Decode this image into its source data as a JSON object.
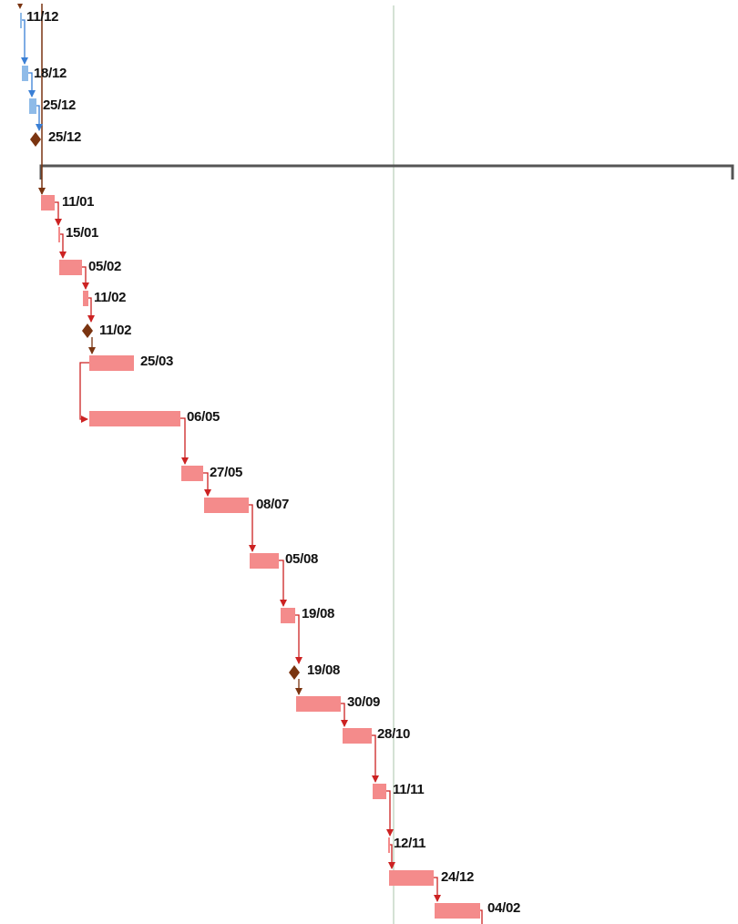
{
  "colors": {
    "critical_bar": "#f48b8b",
    "critical_link": "#cc2222",
    "normal_bar": "#8fbbe8",
    "normal_link": "#3a7fd5",
    "milestone": "#7a3410",
    "summary": "#555555",
    "today_line": "#a8c4a8"
  },
  "tasks": [
    {
      "id": "t1",
      "kind": "normal",
      "date": "11/12"
    },
    {
      "id": "t2",
      "kind": "normal",
      "date": "18/12"
    },
    {
      "id": "t3",
      "kind": "normal",
      "date": "25/12"
    },
    {
      "id": "t4",
      "kind": "milestone",
      "date": "25/12"
    },
    {
      "id": "t5",
      "kind": "critical",
      "date": "11/01"
    },
    {
      "id": "t6",
      "kind": "critical",
      "date": "15/01"
    },
    {
      "id": "t7",
      "kind": "critical",
      "date": "05/02"
    },
    {
      "id": "t8",
      "kind": "critical",
      "date": "11/02"
    },
    {
      "id": "t9",
      "kind": "milestone",
      "date": "11/02"
    },
    {
      "id": "t10",
      "kind": "critical",
      "date": "25/03"
    },
    {
      "id": "t11",
      "kind": "critical",
      "date": "06/05"
    },
    {
      "id": "t12",
      "kind": "critical",
      "date": "27/05"
    },
    {
      "id": "t13",
      "kind": "critical",
      "date": "08/07"
    },
    {
      "id": "t14",
      "kind": "critical",
      "date": "05/08"
    },
    {
      "id": "t15",
      "kind": "critical",
      "date": "19/08"
    },
    {
      "id": "t16",
      "kind": "milestone",
      "date": "19/08"
    },
    {
      "id": "t17",
      "kind": "critical",
      "date": "30/09"
    },
    {
      "id": "t18",
      "kind": "critical",
      "date": "28/10"
    },
    {
      "id": "t19",
      "kind": "critical",
      "date": "11/11"
    },
    {
      "id": "t20",
      "kind": "critical",
      "date": "12/11"
    },
    {
      "id": "t21",
      "kind": "critical",
      "date": "24/12"
    },
    {
      "id": "t22",
      "kind": "critical",
      "date": "04/02"
    }
  ]
}
